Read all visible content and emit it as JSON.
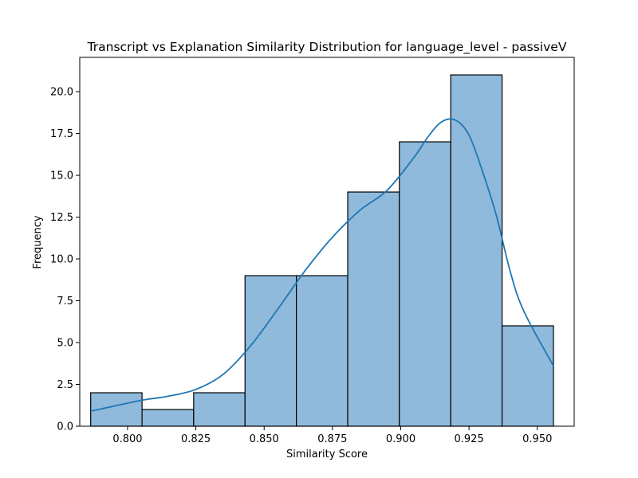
{
  "chart_data": {
    "type": "bar",
    "title": "Transcript vs Explanation Similarity Distribution for language_level - passiveV",
    "xlabel": "Similarity Score",
    "ylabel": "Frequency",
    "xlim": [
      0.7825,
      0.9635
    ],
    "ylim": [
      0,
      22.05
    ],
    "xticks": [
      0.8,
      0.825,
      0.85,
      0.875,
      0.9,
      0.925,
      0.95
    ],
    "xtick_labels": [
      "0.800",
      "0.825",
      "0.850",
      "0.875",
      "0.900",
      "0.925",
      "0.950"
    ],
    "yticks": [
      0.0,
      2.5,
      5.0,
      7.5,
      10.0,
      12.5,
      15.0,
      17.5,
      20.0
    ],
    "ytick_labels": [
      "0.0",
      "2.5",
      "5.0",
      "7.5",
      "10.0",
      "12.5",
      "15.0",
      "17.5",
      "20.0"
    ],
    "bins": [
      {
        "start": 0.7865,
        "end": 0.8053,
        "count": 2
      },
      {
        "start": 0.8053,
        "end": 0.8242,
        "count": 1
      },
      {
        "start": 0.8242,
        "end": 0.843,
        "count": 2
      },
      {
        "start": 0.843,
        "end": 0.8618,
        "count": 9
      },
      {
        "start": 0.8618,
        "end": 0.8806,
        "count": 9
      },
      {
        "start": 0.8806,
        "end": 0.8995,
        "count": 14
      },
      {
        "start": 0.8995,
        "end": 0.9183,
        "count": 17
      },
      {
        "start": 0.9183,
        "end": 0.9371,
        "count": 21
      },
      {
        "start": 0.9371,
        "end": 0.9559,
        "count": 6
      }
    ],
    "kde": {
      "x": [
        0.7865,
        0.795,
        0.805,
        0.815,
        0.825,
        0.835,
        0.845,
        0.855,
        0.865,
        0.875,
        0.885,
        0.895,
        0.905,
        0.91,
        0.915,
        0.92,
        0.925,
        0.93,
        0.935,
        0.94,
        0.945,
        0.9559
      ],
      "y": [
        0.9,
        1.2,
        1.55,
        1.8,
        2.2,
        3.1,
        4.8,
        7.0,
        9.3,
        11.3,
        12.9,
        14.1,
        16.1,
        17.3,
        18.2,
        18.3,
        17.4,
        15.2,
        12.6,
        9.3,
        6.9,
        3.6
      ]
    },
    "grid": false,
    "colors": {
      "bar_fill": "#8fbadb",
      "bar_edge": "#000000",
      "kde_line": "#1f77b4"
    }
  }
}
